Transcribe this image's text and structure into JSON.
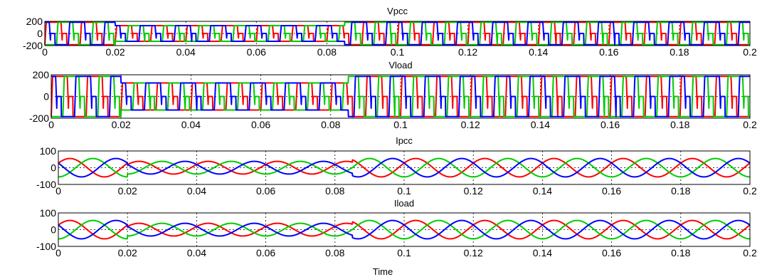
{
  "figure": {
    "xlabel": "Time"
  },
  "chart_data": [
    {
      "type": "line",
      "title": "Vpcc",
      "xlabel": "",
      "ylabel": "",
      "xlim": [
        0,
        0.2
      ],
      "ylim": [
        -200,
        200
      ],
      "xticks": [
        0,
        0.02,
        0.04,
        0.06,
        0.08,
        0.1,
        0.12,
        0.14,
        0.16,
        0.18,
        0.2
      ],
      "xtick_labels": [
        "0",
        "0.02",
        "0.04",
        "0.06",
        "0.08",
        "0.1",
        "0.12",
        "0.14",
        "0.16",
        "0.18",
        "0.2"
      ],
      "yticks": [
        -200,
        0,
        200
      ],
      "ytick_labels": [
        "-200",
        "0",
        "200"
      ],
      "grid": true,
      "frequency_hz": 100,
      "shape": "square",
      "disturbance_interval": [
        0.02,
        0.085
      ],
      "amplitude_normal": 185,
      "amplitude_during_disturbance": 130,
      "series": [
        {
          "color": "#ff0000",
          "phase_deg": 0
        },
        {
          "color": "#00cc00",
          "phase_deg": -120
        },
        {
          "color": "#0000ff",
          "phase_deg": 120
        }
      ]
    },
    {
      "type": "line",
      "title": "Vload",
      "xlabel": "",
      "ylabel": "",
      "xlim": [
        0,
        0.2
      ],
      "ylim": [
        -200,
        200
      ],
      "xticks": [
        0,
        0.02,
        0.04,
        0.06,
        0.08,
        0.1,
        0.12,
        0.14,
        0.16,
        0.18,
        0.2
      ],
      "xtick_labels": [
        "0",
        "0.02",
        "0.04",
        "0.06",
        "0.08",
        "0.1",
        "0.12",
        "0.14",
        "0.16",
        "0.18",
        "0.2"
      ],
      "yticks": [
        -200,
        0,
        200
      ],
      "ytick_labels": [
        "-200",
        "0",
        "200"
      ],
      "grid": true,
      "frequency_hz": 100,
      "shape": "square",
      "disturbance_interval": [
        0.02,
        0.085
      ],
      "amplitude_normal": 185,
      "amplitude_during_disturbance": 125,
      "series": [
        {
          "color": "#ff0000",
          "phase_deg": 0
        },
        {
          "color": "#00cc00",
          "phase_deg": -120
        },
        {
          "color": "#0000ff",
          "phase_deg": 120
        }
      ]
    },
    {
      "type": "line",
      "title": "Ipcc",
      "xlabel": "",
      "ylabel": "",
      "xlim": [
        0,
        0.2
      ],
      "ylim": [
        -100,
        100
      ],
      "xticks": [
        0,
        0.02,
        0.04,
        0.06,
        0.08,
        0.1,
        0.12,
        0.14,
        0.16,
        0.18,
        0.2
      ],
      "xtick_labels": [
        "0",
        "0.02",
        "0.04",
        "0.06",
        "0.08",
        "0.1",
        "0.12",
        "0.14",
        "0.16",
        "0.18",
        "0.2"
      ],
      "yticks": [
        -100,
        0,
        100
      ],
      "ytick_labels": [
        "-100",
        "0",
        "100"
      ],
      "grid": true,
      "frequency_hz": 50,
      "shape": "sine",
      "disturbance_interval": [
        0.02,
        0.085
      ],
      "amplitude_normal": 55,
      "amplitude_during_disturbance": 38,
      "series": [
        {
          "color": "#ff0000",
          "phase_deg": 30
        },
        {
          "color": "#00cc00",
          "phase_deg": -90
        },
        {
          "color": "#0000ff",
          "phase_deg": 150
        }
      ]
    },
    {
      "type": "line",
      "title": "Iload",
      "xlabel": "Time",
      "ylabel": "",
      "xlim": [
        0,
        0.2
      ],
      "ylim": [
        -100,
        100
      ],
      "xticks": [
        0,
        0.02,
        0.04,
        0.06,
        0.08,
        0.1,
        0.12,
        0.14,
        0.16,
        0.18,
        0.2
      ],
      "xtick_labels": [
        "0",
        "0.02",
        "0.04",
        "0.06",
        "0.08",
        "0.1",
        "0.12",
        "0.14",
        "0.16",
        "0.18",
        "0.2"
      ],
      "yticks": [
        -100,
        0,
        100
      ],
      "ytick_labels": [
        "-100",
        "0",
        "100"
      ],
      "grid": true,
      "frequency_hz": 50,
      "shape": "sine",
      "disturbance_interval": [
        0.02,
        0.085
      ],
      "amplitude_normal": 55,
      "amplitude_during_disturbance": 38,
      "series": [
        {
          "color": "#ff0000",
          "phase_deg": 30
        },
        {
          "color": "#00cc00",
          "phase_deg": -90
        },
        {
          "color": "#0000ff",
          "phase_deg": 150
        }
      ]
    }
  ]
}
